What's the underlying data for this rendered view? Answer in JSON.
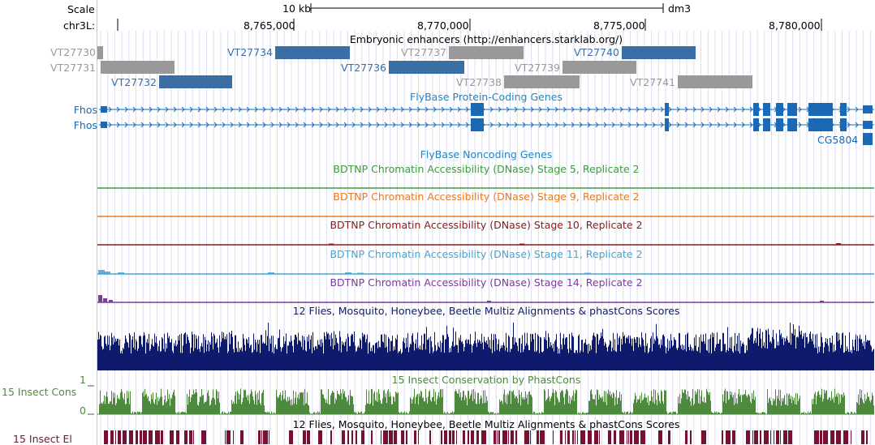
{
  "browser": {
    "scale_label": "Scale",
    "chrom_label": "chr3L:",
    "scale_bar_text": "10 kb",
    "assembly": "dm3",
    "positions": [
      "8,765,000",
      "8,770,000",
      "8,775,000",
      "8,780,000"
    ]
  },
  "tracks": {
    "enhancers": {
      "title": "Embryonic enhancers (http://enhancers.starklab.org/)",
      "items": [
        {
          "name": "VT27730",
          "color": "#999999"
        },
        {
          "name": "VT27731",
          "color": "#999999"
        },
        {
          "name": "VT27732",
          "color": "#3a6ea5"
        },
        {
          "name": "VT27734",
          "color": "#3a6ea5"
        },
        {
          "name": "VT27736",
          "color": "#3a6ea5"
        },
        {
          "name": "VT27737",
          "color": "#999999"
        },
        {
          "name": "VT27738",
          "color": "#999999"
        },
        {
          "name": "VT27739",
          "color": "#999999"
        },
        {
          "name": "VT27740",
          "color": "#3a6ea5"
        },
        {
          "name": "VT27741",
          "color": "#999999"
        }
      ]
    },
    "flybase_coding": {
      "title": "FlyBase Protein-Coding Genes",
      "genes": [
        "Fhos",
        "Fhos",
        "CG5804"
      ],
      "color": "#1b69b5"
    },
    "flybase_noncoding": {
      "title": "FlyBase Noncoding Genes",
      "color": "#1b88c9"
    },
    "dnase": [
      {
        "title": "BDTNP Chromatin Accessibility (DNase) Stage 5, Replicate 2",
        "color": "#3d9a3d"
      },
      {
        "title": "BDTNP Chromatin Accessibility (DNase) Stage 9, Replicate 2",
        "color": "#e87a20"
      },
      {
        "title": "BDTNP Chromatin Accessibility (DNase) Stage 10, Replicate 2",
        "color": "#8b1a1a"
      },
      {
        "title": "BDTNP Chromatin Accessibility (DNase) Stage 11, Replicate 2",
        "color": "#42a5d4"
      },
      {
        "title": "BDTNP Chromatin Accessibility (DNase) Stage 14, Replicate 2",
        "color": "#7a3d9a"
      }
    ],
    "multiz": {
      "title": "12 Flies, Mosquito, Honeybee, Beetle Multiz Alignments & phastCons Scores",
      "color": "#0e1a6b"
    },
    "insect_cons": {
      "title": "15 Insect Conservation by PhastCons",
      "left_label": "15 Insect Cons",
      "ymax_label": "1",
      "ymin_label": "0",
      "color": "#4e8a3e"
    },
    "insect_el": {
      "title": "12 Flies, Mosquito, Honeybee, Beetle Multiz Alignments & phastCons Scores",
      "left_label": "15 Insect El",
      "color": "#7a1030"
    }
  }
}
